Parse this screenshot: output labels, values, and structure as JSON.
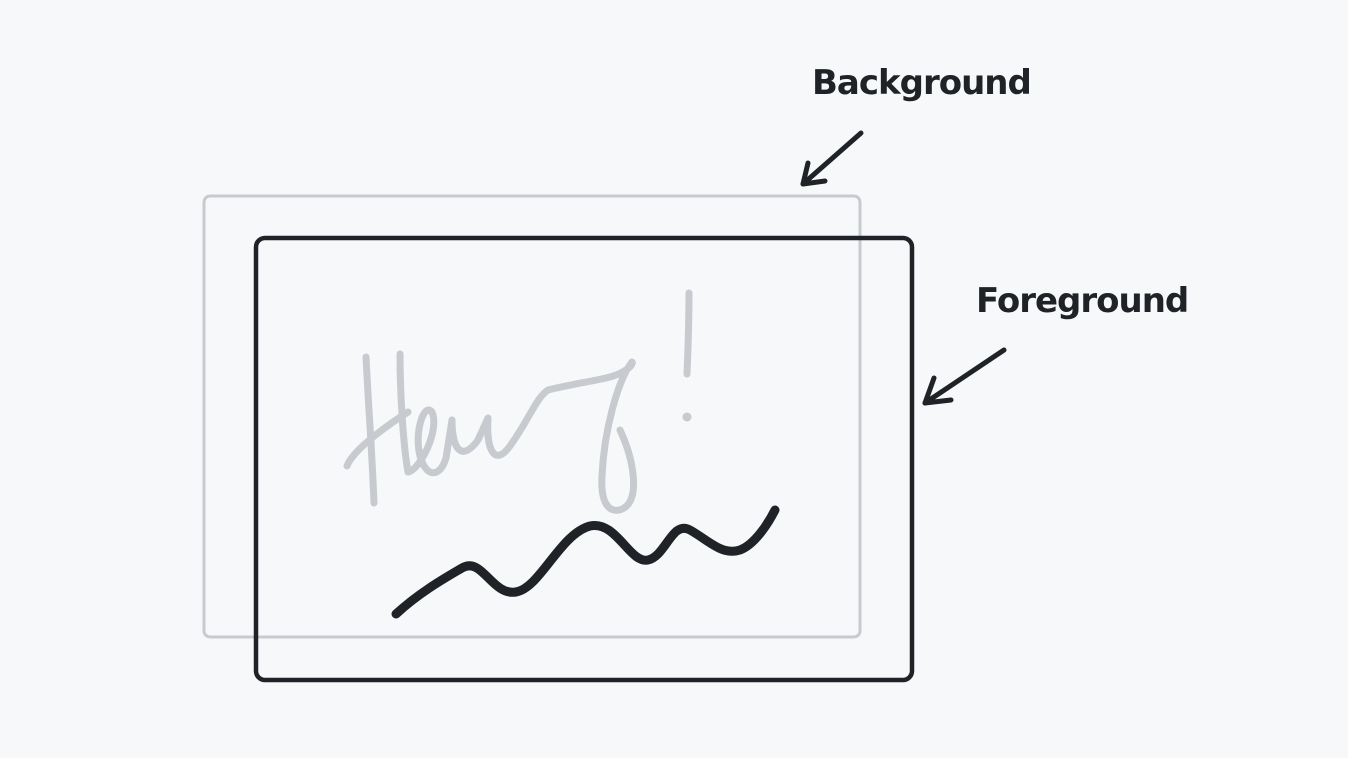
{
  "labels": {
    "background": "Background",
    "foreground": "Foreground"
  },
  "colors": {
    "page_background": "#f7f8fa",
    "ink": "#1f2226",
    "faded_ink": "#c7cacf"
  },
  "background_layer": {
    "handwriting": "Hey!"
  }
}
